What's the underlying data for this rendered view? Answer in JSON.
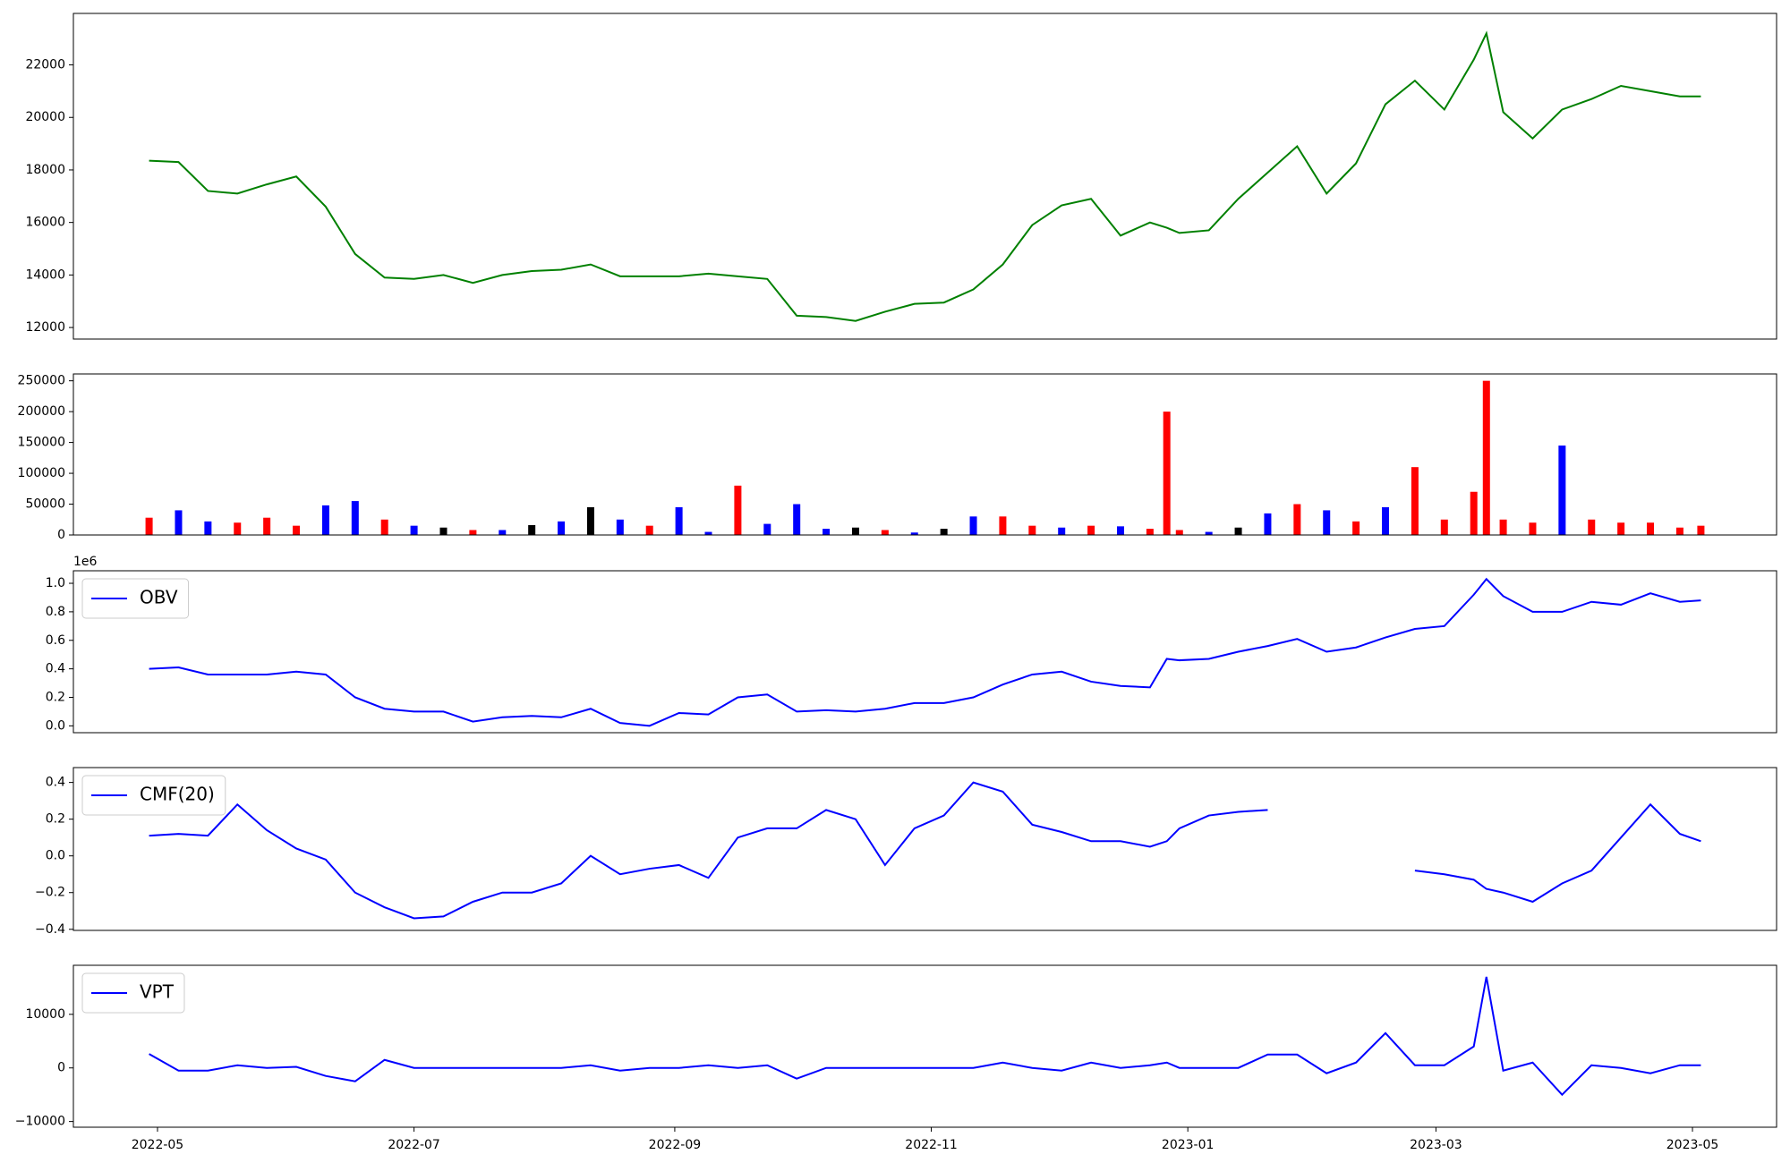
{
  "chart_data": [
    {
      "type": "line",
      "x": [
        "2022-04-29",
        "2022-05-06",
        "2022-05-13",
        "2022-05-20",
        "2022-05-27",
        "2022-06-03",
        "2022-06-10",
        "2022-06-17",
        "2022-06-24",
        "2022-07-01",
        "2022-07-08",
        "2022-07-15",
        "2022-07-22",
        "2022-07-29",
        "2022-08-05",
        "2022-08-12",
        "2022-08-19",
        "2022-08-26",
        "2022-09-02",
        "2022-09-09",
        "2022-09-16",
        "2022-09-23",
        "2022-09-30",
        "2022-10-07",
        "2022-10-14",
        "2022-10-21",
        "2022-10-28",
        "2022-11-04",
        "2022-11-11",
        "2022-11-18",
        "2022-11-25",
        "2022-12-02",
        "2022-12-09",
        "2022-12-16",
        "2022-12-23",
        "2022-12-27",
        "2022-12-30",
        "2023-01-06",
        "2023-01-13",
        "2023-01-20",
        "2023-01-27",
        "2023-02-03",
        "2023-02-10",
        "2023-02-17",
        "2023-02-24",
        "2023-03-03",
        "2023-03-10",
        "2023-03-13",
        "2023-03-17",
        "2023-03-24",
        "2023-03-31",
        "2023-04-07",
        "2023-04-14",
        "2023-04-21",
        "2023-04-28",
        "2023-05-03"
      ],
      "series": [
        {
          "color": "#008000",
          "values": [
            18350,
            18300,
            17200,
            17100,
            17450,
            17750,
            16600,
            14800,
            13900,
            13850,
            14000,
            13700,
            14000,
            14150,
            14200,
            14400,
            13950,
            13950,
            13950,
            14050,
            13950,
            13850,
            12450,
            12400,
            12250,
            12600,
            12900,
            12950,
            13450,
            14400,
            15900,
            16650,
            16900,
            15500,
            16000,
            15800,
            15600,
            15700,
            16900,
            17900,
            18900,
            17100,
            18250,
            20500,
            21400,
            20300,
            22200,
            23200,
            20200,
            19200,
            20300,
            20700,
            21200,
            21000,
            20800,
            20800
          ]
        }
      ],
      "xlim": [
        "2022-04-11",
        "2023-05-21"
      ],
      "ylim": [
        11560,
        23960
      ],
      "yticks": [
        12000,
        14000,
        16000,
        18000,
        20000,
        22000
      ]
    },
    {
      "type": "bar",
      "x": [
        "2022-04-29",
        "2022-05-06",
        "2022-05-13",
        "2022-05-20",
        "2022-05-27",
        "2022-06-03",
        "2022-06-10",
        "2022-06-17",
        "2022-06-24",
        "2022-07-01",
        "2022-07-08",
        "2022-07-15",
        "2022-07-22",
        "2022-07-29",
        "2022-08-05",
        "2022-08-12",
        "2022-08-19",
        "2022-08-26",
        "2022-09-02",
        "2022-09-09",
        "2022-09-16",
        "2022-09-23",
        "2022-09-30",
        "2022-10-07",
        "2022-10-14",
        "2022-10-21",
        "2022-10-28",
        "2022-11-04",
        "2022-11-11",
        "2022-11-18",
        "2022-11-25",
        "2022-12-02",
        "2022-12-09",
        "2022-12-16",
        "2022-12-23",
        "2022-12-27",
        "2022-12-30",
        "2023-01-06",
        "2023-01-13",
        "2023-01-20",
        "2023-01-27",
        "2023-02-03",
        "2023-02-10",
        "2023-02-17",
        "2023-02-24",
        "2023-03-03",
        "2023-03-10",
        "2023-03-13",
        "2023-03-17",
        "2023-03-24",
        "2023-03-31",
        "2023-04-07",
        "2023-04-14",
        "2023-04-21",
        "2023-04-28",
        "2023-05-03"
      ],
      "series": [
        {
          "values": [
            28000,
            40000,
            22000,
            20000,
            28000,
            15000,
            48000,
            55000,
            25000,
            15000,
            12000,
            8000,
            8000,
            16000,
            22000,
            45000,
            25000,
            15000,
            45000,
            5000,
            80000,
            18000,
            50000,
            10000,
            12000,
            8000,
            4000,
            10000,
            30000,
            30000,
            15000,
            12000,
            15000,
            14000,
            10000,
            200000,
            8000,
            5000,
            12000,
            35000,
            50000,
            40000,
            22000,
            45000,
            110000,
            25000,
            70000,
            250000,
            25000,
            20000,
            145000,
            25000,
            20000,
            20000,
            12000,
            15000
          ],
          "colors": [
            "#ff0000",
            "#0000ff",
            "#0000ff",
            "#ff0000",
            "#ff0000",
            "#ff0000",
            "#0000ff",
            "#0000ff",
            "#ff0000",
            "#0000ff",
            "#000000",
            "#ff0000",
            "#0000ff",
            "#000000",
            "#0000ff",
            "#000000",
            "#0000ff",
            "#ff0000",
            "#0000ff",
            "#0000ff",
            "#ff0000",
            "#0000ff",
            "#0000ff",
            "#0000ff",
            "#000000",
            "#ff0000",
            "#0000ff",
            "#000000",
            "#0000ff",
            "#ff0000",
            "#ff0000",
            "#0000ff",
            "#ff0000",
            "#0000ff",
            "#ff0000",
            "#ff0000",
            "#ff0000",
            "#0000ff",
            "#000000",
            "#0000ff",
            "#ff0000",
            "#0000ff",
            "#ff0000",
            "#0000ff",
            "#ff0000",
            "#ff0000",
            "#ff0000",
            "#ff0000",
            "#ff0000",
            "#ff0000",
            "#0000ff",
            "#ff0000",
            "#ff0000",
            "#ff0000",
            "#ff0000",
            "#ff0000"
          ]
        }
      ],
      "xlim": [
        "2022-04-11",
        "2023-05-21"
      ],
      "ylim": [
        0,
        261100
      ],
      "yticks": [
        0,
        50000,
        100000,
        150000,
        200000,
        250000
      ]
    },
    {
      "type": "line",
      "x": [
        "2022-04-29",
        "2022-05-06",
        "2022-05-13",
        "2022-05-20",
        "2022-05-27",
        "2022-06-03",
        "2022-06-10",
        "2022-06-17",
        "2022-06-24",
        "2022-07-01",
        "2022-07-08",
        "2022-07-15",
        "2022-07-22",
        "2022-07-29",
        "2022-08-05",
        "2022-08-12",
        "2022-08-19",
        "2022-08-26",
        "2022-09-02",
        "2022-09-09",
        "2022-09-16",
        "2022-09-23",
        "2022-09-30",
        "2022-10-07",
        "2022-10-14",
        "2022-10-21",
        "2022-10-28",
        "2022-11-04",
        "2022-11-11",
        "2022-11-18",
        "2022-11-25",
        "2022-12-02",
        "2022-12-09",
        "2022-12-16",
        "2022-12-23",
        "2022-12-27",
        "2022-12-30",
        "2023-01-06",
        "2023-01-13",
        "2023-01-20",
        "2023-01-27",
        "2023-02-03",
        "2023-02-10",
        "2023-02-17",
        "2023-02-24",
        "2023-03-03",
        "2023-03-10",
        "2023-03-13",
        "2023-03-17",
        "2023-03-24",
        "2023-03-31",
        "2023-04-07",
        "2023-04-14",
        "2023-04-21",
        "2023-04-28",
        "2023-05-03"
      ],
      "series": [
        {
          "name": "OBV",
          "color": "#0000ff",
          "values": [
            0.4,
            0.41,
            0.36,
            0.36,
            0.36,
            0.38,
            0.36,
            0.2,
            0.12,
            0.1,
            0.1,
            0.03,
            0.06,
            0.07,
            0.06,
            0.12,
            0.02,
            0.0,
            0.09,
            0.08,
            0.2,
            0.22,
            0.1,
            0.11,
            0.1,
            0.12,
            0.16,
            0.16,
            0.2,
            0.29,
            0.36,
            0.38,
            0.31,
            0.28,
            0.27,
            0.47,
            0.46,
            0.47,
            0.52,
            0.56,
            0.61,
            0.52,
            0.55,
            0.62,
            0.68,
            0.7,
            0.92,
            1.03,
            0.91,
            0.8,
            0.8,
            0.87,
            0.85,
            0.93,
            0.87,
            0.88
          ]
        }
      ],
      "offset_text": "1e6",
      "legend": "upper left",
      "xlim": [
        "2022-04-11",
        "2023-05-21"
      ],
      "ylim": [
        -0.048,
        1.088
      ],
      "yticks": [
        {
          "value": 0,
          "label": "0.0"
        },
        0.2,
        0.4,
        0.6,
        0.8,
        {
          "value": 1,
          "label": "1.0"
        }
      ]
    },
    {
      "type": "line",
      "x": [
        "2022-04-29",
        "2022-05-06",
        "2022-05-13",
        "2022-05-20",
        "2022-05-27",
        "2022-06-03",
        "2022-06-10",
        "2022-06-17",
        "2022-06-24",
        "2022-07-01",
        "2022-07-08",
        "2022-07-15",
        "2022-07-22",
        "2022-07-29",
        "2022-08-05",
        "2022-08-12",
        "2022-08-19",
        "2022-08-26",
        "2022-09-02",
        "2022-09-09",
        "2022-09-16",
        "2022-09-23",
        "2022-09-30",
        "2022-10-07",
        "2022-10-14",
        "2022-10-21",
        "2022-10-28",
        "2022-11-04",
        "2022-11-11",
        "2022-11-18",
        "2022-11-25",
        "2022-12-02",
        "2022-12-09",
        "2022-12-16",
        "2022-12-23",
        "2022-12-27",
        "2022-12-30",
        "2023-01-06",
        "2023-01-13",
        "2023-01-20",
        "2023-01-27",
        "2023-02-03",
        "2023-02-10",
        "2023-02-17",
        "2023-02-24",
        "2023-03-03",
        "2023-03-10",
        "2023-03-13",
        "2023-03-17",
        "2023-03-24",
        "2023-03-31",
        "2023-04-07",
        "2023-04-14",
        "2023-04-21",
        "2023-04-28",
        "2023-05-03"
      ],
      "series": [
        {
          "name": "CMF(20)",
          "color": "#0000ff",
          "values": [
            0.11,
            0.12,
            0.11,
            0.28,
            0.14,
            0.04,
            -0.02,
            -0.2,
            -0.28,
            -0.34,
            -0.33,
            -0.25,
            -0.2,
            -0.2,
            -0.15,
            0.0,
            -0.1,
            -0.07,
            -0.05,
            -0.12,
            0.1,
            0.15,
            0.15,
            0.25,
            0.2,
            -0.05,
            0.15,
            0.22,
            0.4,
            0.35,
            0.17,
            0.13,
            0.08,
            0.08,
            0.05,
            0.08,
            0.15,
            0.22,
            0.24,
            0.25,
            null,
            null,
            null,
            null,
            -0.08,
            -0.1,
            -0.13,
            -0.18,
            -0.2,
            -0.25,
            -0.15,
            -0.08,
            0.1,
            0.28,
            0.12,
            0.08
          ]
        }
      ],
      "legend": "upper left",
      "xlim": [
        "2022-04-11",
        "2023-05-21"
      ],
      "ylim": [
        -0.406,
        0.481
      ],
      "yticks": [
        {
          "value": -0.4,
          "label": "−0.4"
        },
        {
          "value": -0.2,
          "label": "−0.2"
        },
        {
          "value": 0,
          "label": "0.0"
        },
        0.2,
        0.4
      ]
    },
    {
      "type": "line",
      "x": [
        "2022-04-29",
        "2022-05-06",
        "2022-05-13",
        "2022-05-20",
        "2022-05-27",
        "2022-06-03",
        "2022-06-10",
        "2022-06-17",
        "2022-06-24",
        "2022-07-01",
        "2022-07-08",
        "2022-07-15",
        "2022-07-22",
        "2022-07-29",
        "2022-08-05",
        "2022-08-12",
        "2022-08-19",
        "2022-08-26",
        "2022-09-02",
        "2022-09-09",
        "2022-09-16",
        "2022-09-23",
        "2022-09-30",
        "2022-10-07",
        "2022-10-14",
        "2022-10-21",
        "2022-10-28",
        "2022-11-04",
        "2022-11-11",
        "2022-11-18",
        "2022-11-25",
        "2022-12-02",
        "2022-12-09",
        "2022-12-16",
        "2022-12-23",
        "2022-12-27",
        "2022-12-30",
        "2023-01-06",
        "2023-01-13",
        "2023-01-20",
        "2023-01-27",
        "2023-02-03",
        "2023-02-10",
        "2023-02-17",
        "2023-02-24",
        "2023-03-03",
        "2023-03-10",
        "2023-03-13",
        "2023-03-17",
        "2023-03-24",
        "2023-03-31",
        "2023-04-07",
        "2023-04-14",
        "2023-04-21",
        "2023-04-28",
        "2023-05-03"
      ],
      "series": [
        {
          "name": "VPT",
          "color": "#0000ff",
          "values": [
            2600,
            -500,
            -500,
            500,
            0,
            200,
            -1500,
            -2500,
            1500,
            0,
            0,
            0,
            0,
            0,
            0,
            500,
            -500,
            0,
            0,
            500,
            0,
            500,
            -2000,
            0,
            0,
            0,
            0,
            0,
            0,
            1000,
            0,
            -500,
            1000,
            0,
            500,
            1000,
            0,
            0,
            0,
            2500,
            2500,
            -1000,
            1000,
            6500,
            500,
            500,
            4000,
            17000,
            -500,
            1000,
            -5000,
            500,
            0,
            -1000,
            500,
            500
          ]
        }
      ],
      "legend": "upper left",
      "xlim": [
        "2022-04-11",
        "2023-05-21"
      ],
      "xticks": [
        {
          "value": "2022-05-01",
          "label": "2022-05"
        },
        {
          "value": "2022-07-01",
          "label": "2022-07"
        },
        {
          "value": "2022-09-01",
          "label": "2022-09"
        },
        {
          "value": "2022-11-01",
          "label": "2022-11"
        },
        {
          "value": "2023-01-01",
          "label": "2023-01"
        },
        {
          "value": "2023-03-01",
          "label": "2023-03"
        },
        {
          "value": "2023-05-01",
          "label": "2023-05"
        }
      ],
      "ylim": [
        -11064,
        19149
      ],
      "yticks": [
        {
          "value": -10000,
          "label": "−10000"
        },
        0,
        10000
      ]
    }
  ]
}
